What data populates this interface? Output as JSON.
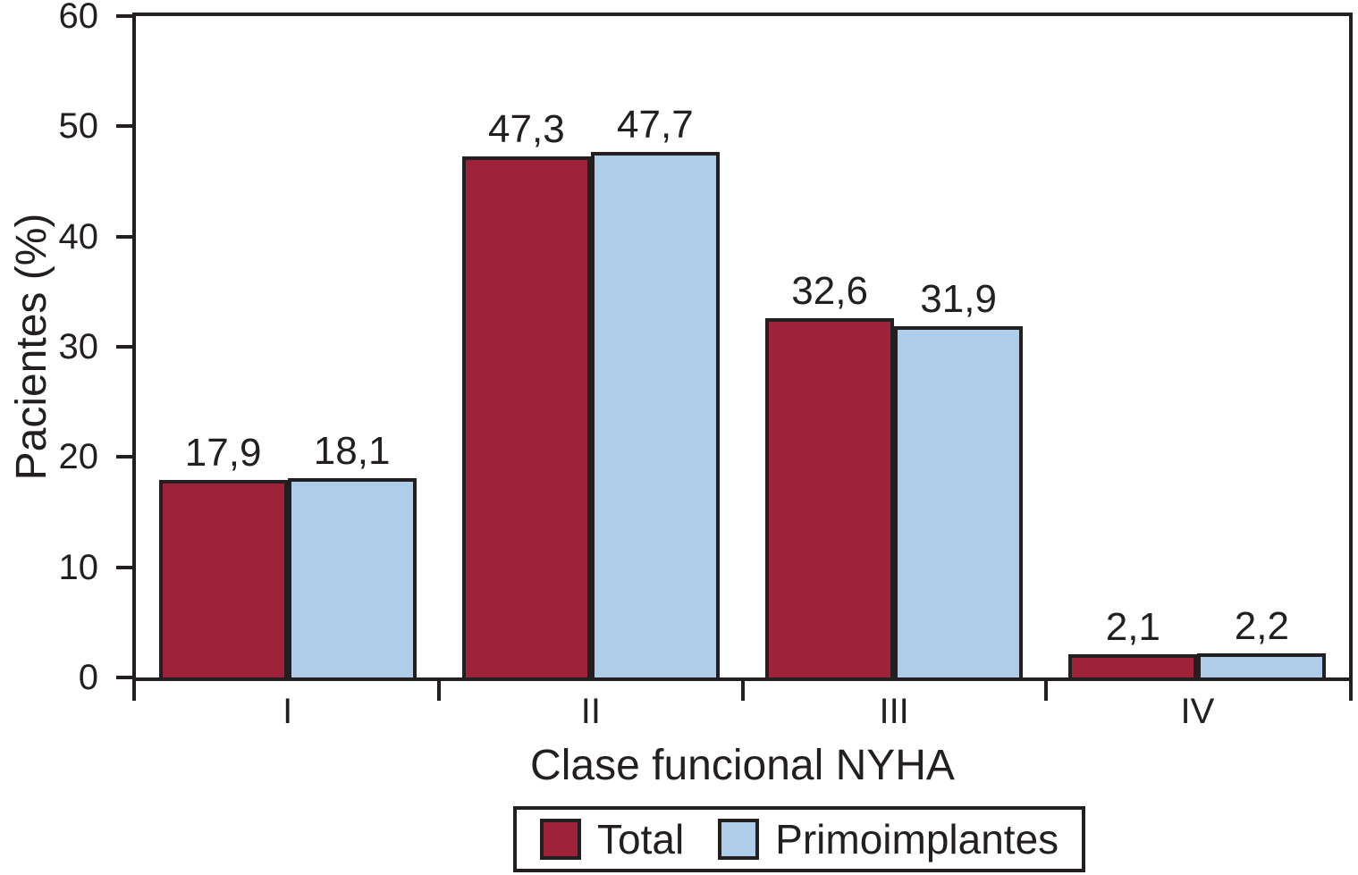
{
  "figure": {
    "background": "#ffffff",
    "ink_color": "#231F20"
  },
  "chart_data": {
    "type": "bar",
    "title": "",
    "categories": [
      "I",
      "II",
      "III",
      "IV"
    ],
    "series": [
      {
        "name": "Total",
        "color": "#9E2239",
        "values": [
          17.9,
          47.3,
          32.6,
          2.1
        ],
        "value_labels": [
          "17,9",
          "47,3",
          "32,6",
          "2,1"
        ]
      },
      {
        "name": "Primoimplantes",
        "color": "#ADCDE9",
        "values": [
          18.1,
          47.7,
          31.9,
          2.2
        ],
        "value_labels": [
          "18,1",
          "47,7",
          "31,9",
          "2,2"
        ]
      }
    ],
    "xlabel": "Clase funcional NYHA",
    "ylabel": "Pacientes (%)",
    "ylim": [
      0,
      60
    ],
    "y_ticks": [
      0,
      10,
      20,
      30,
      40,
      50,
      60
    ],
    "grid": false,
    "legend_position": "bottom",
    "decimal_separator": ",",
    "bar_outline_color": "#231F20"
  },
  "legend": {
    "items": [
      {
        "label": "Total",
        "color": "#9E2239"
      },
      {
        "label": "Primoimplantes",
        "color": "#ADCDE9"
      }
    ]
  }
}
